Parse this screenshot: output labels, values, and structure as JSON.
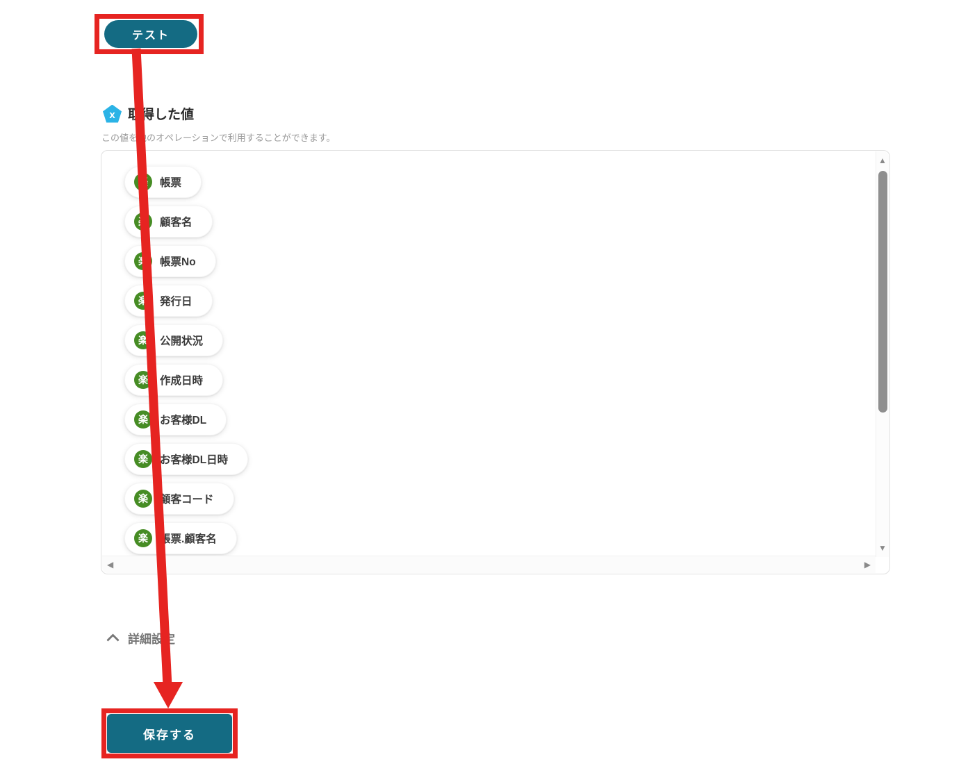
{
  "test_button": {
    "label": "テスト"
  },
  "retrieved_values": {
    "title": "取得した値",
    "subtitle": "この値を他のオペレーションで利用することができます。",
    "section_icon_letter": "x",
    "chip_icon_letter": "楽",
    "chips": [
      "帳票",
      "顧客名",
      "帳票No",
      "発行日",
      "公開状況",
      "作成日時",
      "お客様DL",
      "お客様DL日時",
      "顧客コード",
      "帳票.顧客名"
    ]
  },
  "scrollbar_icons": {
    "up": "▲",
    "down": "▼",
    "left": "◀",
    "right": "▶"
  },
  "advanced_settings": {
    "label": "詳細設定"
  },
  "save_button": {
    "label": "保存する"
  },
  "colors": {
    "accent_teal": "#146b83",
    "annotation_red": "#e62421",
    "service_green": "#468c24",
    "section_blue": "#2bb3e6"
  }
}
